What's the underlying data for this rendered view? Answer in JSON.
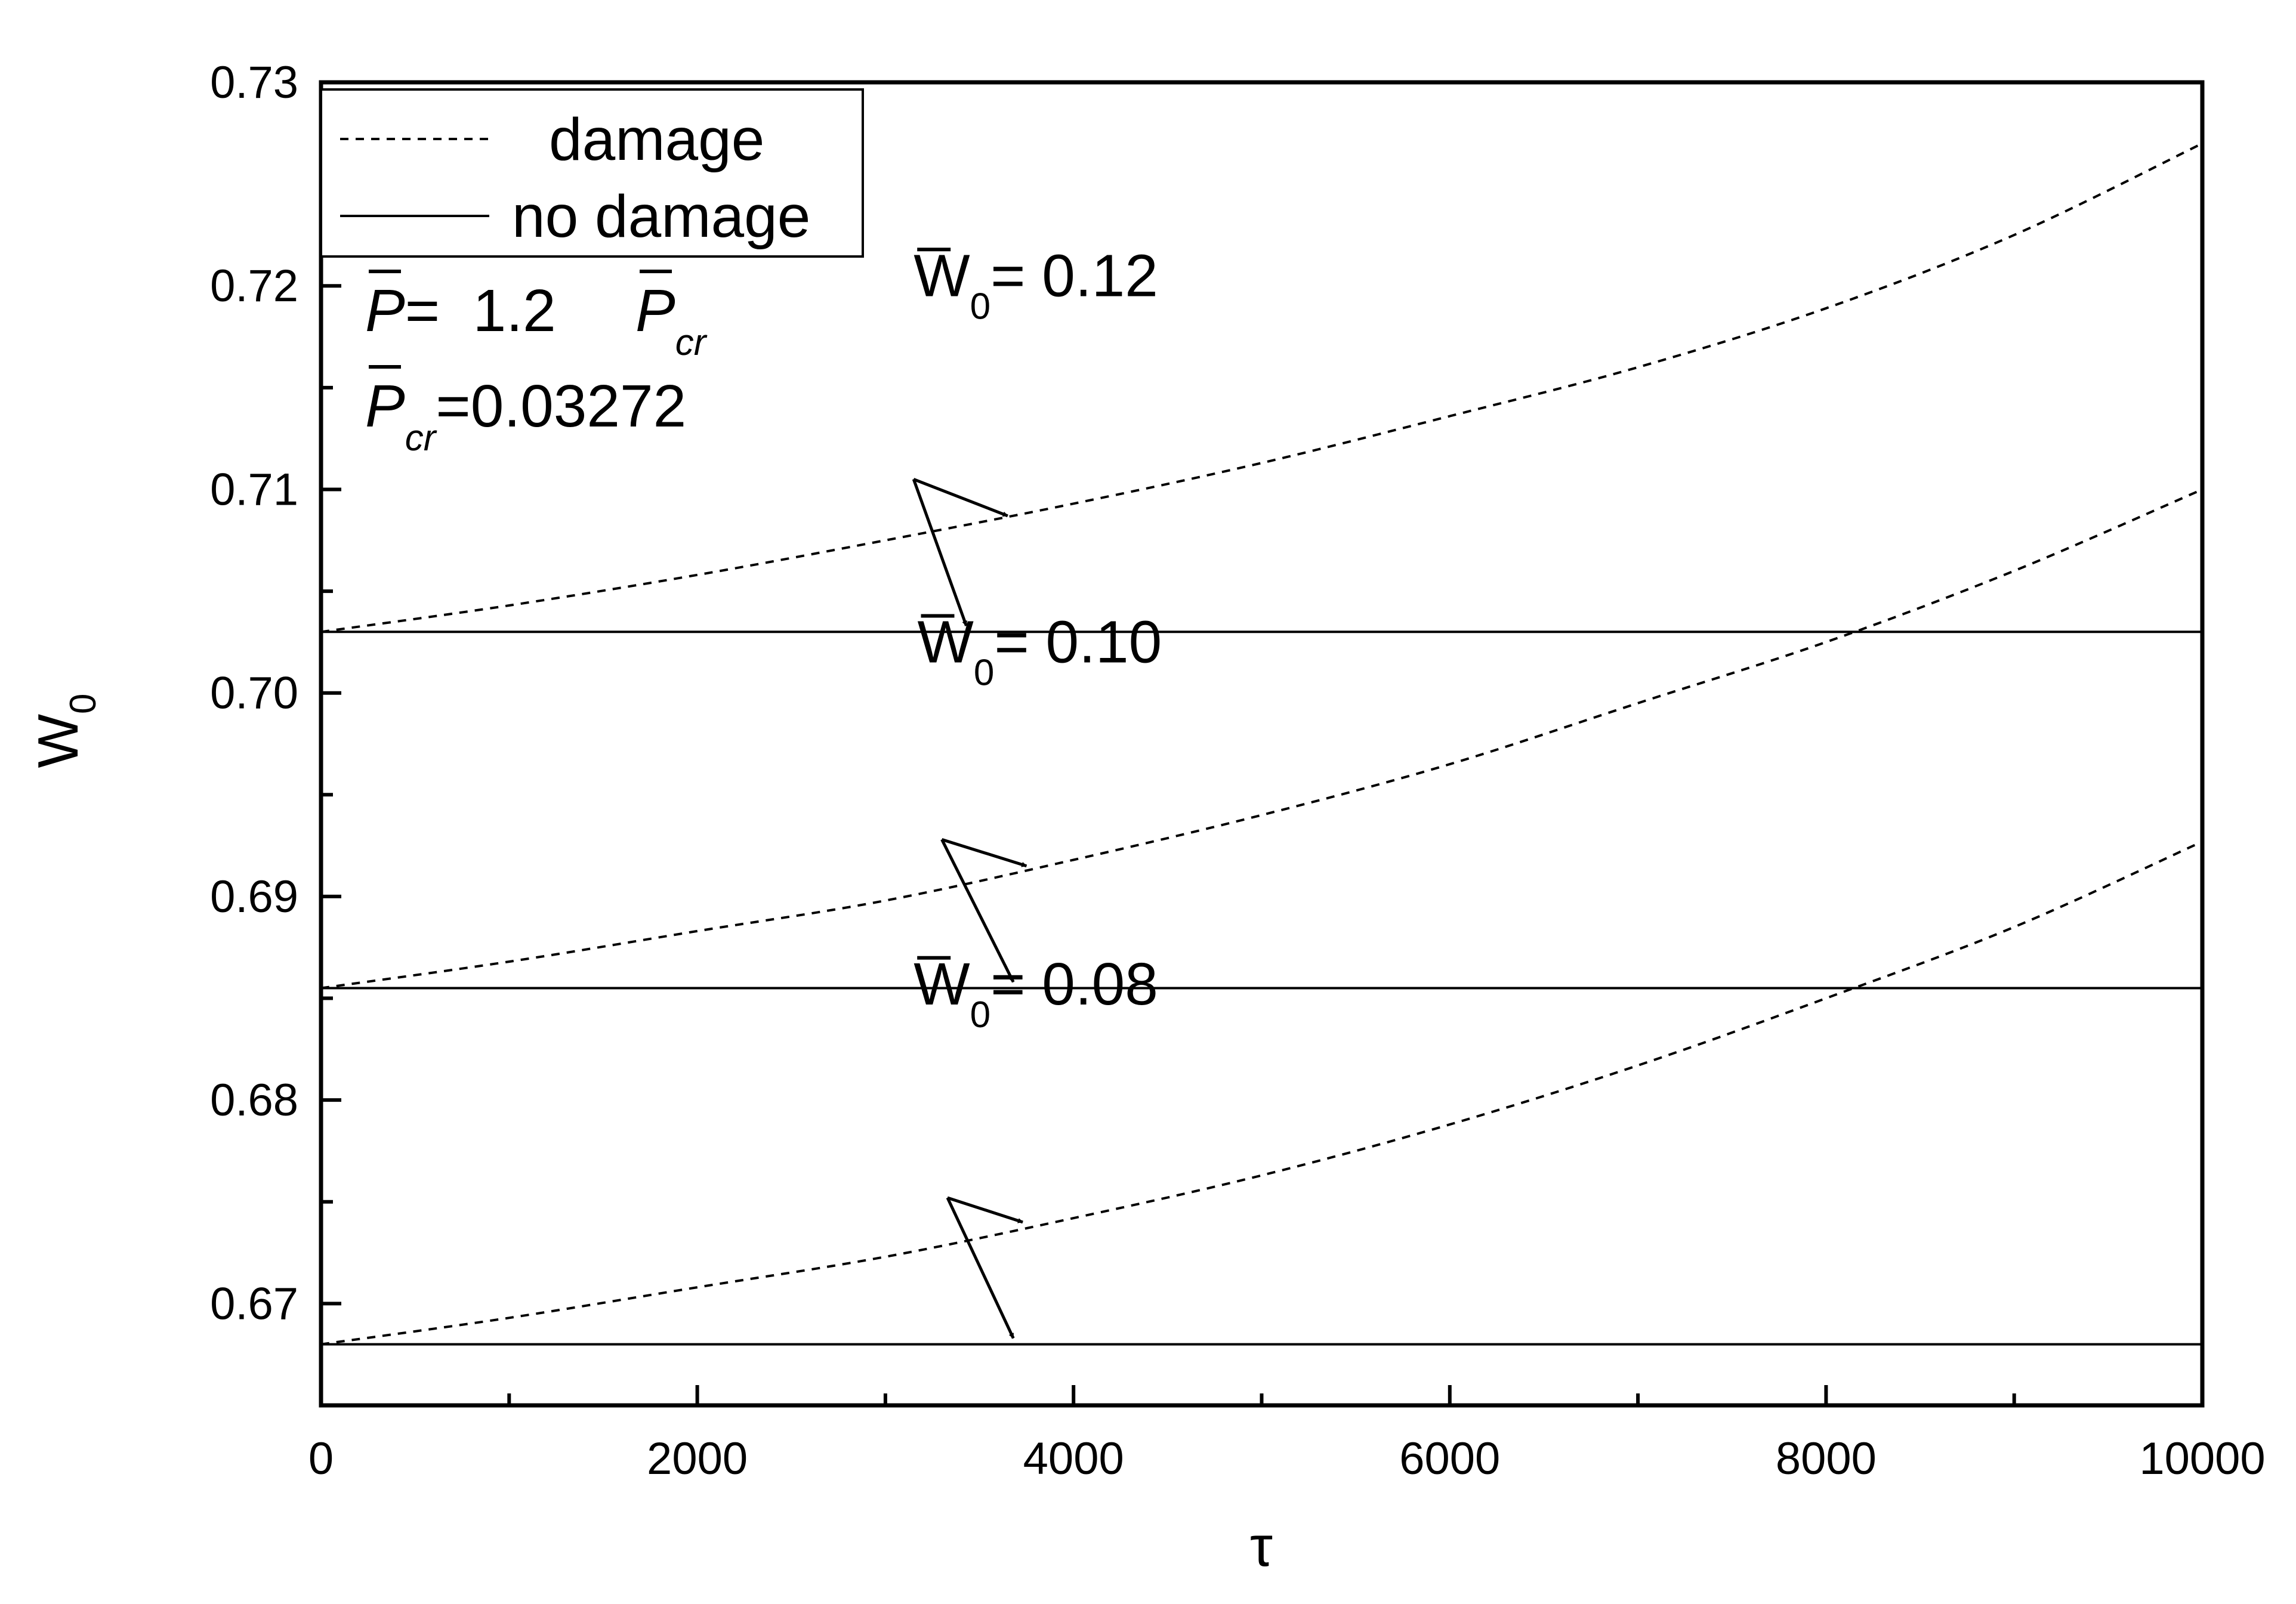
{
  "chart_data": {
    "type": "line",
    "xlabel": "τ",
    "ylabel": "W",
    "ylabel_sub": "0",
    "xlim": [
      0,
      10000
    ],
    "ylim": [
      0.665,
      0.73
    ],
    "xticks": [
      0,
      2000,
      4000,
      6000,
      8000,
      10000
    ],
    "xtick_labels": [
      "0",
      "2000",
      "4000",
      "6000",
      "8000",
      "10000"
    ],
    "yticks": [
      0.67,
      0.68,
      0.69,
      0.7,
      0.71,
      0.72,
      0.73
    ],
    "ytick_labels": [
      "0.67",
      "0.68",
      "0.69",
      "0.70",
      "0.71",
      "0.72",
      "0.73"
    ],
    "grid": false,
    "legend": {
      "placement": "top-left",
      "entries": [
        {
          "label": "damage",
          "style": "dashed"
        },
        {
          "label": "no damage",
          "style": "solid"
        }
      ]
    },
    "x": [
      0,
      1000,
      2000,
      3000,
      4000,
      5000,
      6000,
      7000,
      8000,
      9000,
      10000
    ],
    "series": [
      {
        "style": "dashed",
        "group": "0.12",
        "values": [
          0.703,
          0.7043,
          0.7058,
          0.7075,
          0.7093,
          0.7113,
          0.7136,
          0.716,
          0.7189,
          0.7225,
          0.727
        ]
      },
      {
        "style": "solid",
        "group": "0.12",
        "values": [
          0.703,
          0.703,
          0.703,
          0.703,
          0.703,
          0.703,
          0.703,
          0.703,
          0.703,
          0.703,
          0.703
        ]
      },
      {
        "style": "dashed",
        "group": "0.10",
        "values": [
          0.6855,
          0.6868,
          0.6883,
          0.6898,
          0.6918,
          0.694,
          0.6965,
          0.6995,
          0.7025,
          0.706,
          0.71
        ]
      },
      {
        "style": "solid",
        "group": "0.10",
        "values": [
          0.6855,
          0.6855,
          0.6855,
          0.6855,
          0.6855,
          0.6855,
          0.6855,
          0.6855,
          0.6855,
          0.6855,
          0.6855
        ]
      },
      {
        "style": "dashed",
        "group": "0.08",
        "values": [
          0.668,
          0.6693,
          0.6708,
          0.6723,
          0.6742,
          0.6763,
          0.6788,
          0.6817,
          0.685,
          0.6885,
          0.6927
        ]
      },
      {
        "style": "solid",
        "group": "0.08",
        "values": [
          0.668,
          0.668,
          0.668,
          0.668,
          0.668,
          0.668,
          0.668,
          0.668,
          0.668,
          0.668,
          0.668
        ]
      }
    ],
    "parameters": {
      "p_lhs": "P",
      "p_eq": "=  1.2",
      "p_rhs": "P",
      "p_rhs_sub": "cr",
      "pcr_lhs": "P",
      "pcr_sub": "cr",
      "pcr_eq": "=0.03272"
    },
    "annotations": [
      {
        "var": "W",
        "sub": "0",
        "text": "= 0.12",
        "label_at": [
          3150,
          0.7195
        ],
        "origin": [
          3150,
          0.7105
        ],
        "arrow_to": [
          [
            3650,
            0.7087
          ],
          [
            3430,
            0.7033
          ]
        ]
      },
      {
        "var": "W",
        "sub": "0",
        "text": "= 0.10",
        "label_at": [
          3170,
          0.7015
        ],
        "origin": [
          3300,
          0.6928
        ],
        "arrow_to": [
          [
            3750,
            0.6915
          ],
          [
            3680,
            0.6858
          ]
        ]
      },
      {
        "var": "W",
        "sub": "0",
        "text": "= 0.08",
        "label_at": [
          3150,
          0.6847
        ],
        "origin": [
          3330,
          0.6752
        ],
        "arrow_to": [
          [
            3730,
            0.674
          ],
          [
            3680,
            0.6683
          ]
        ]
      }
    ]
  }
}
